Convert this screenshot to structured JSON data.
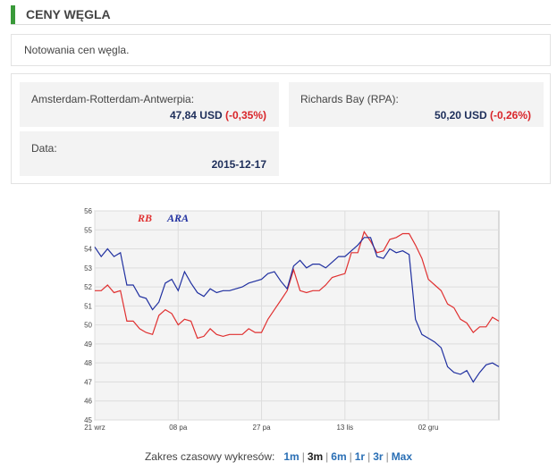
{
  "header": {
    "title": "CENY WĘGLA"
  },
  "description": "Notowania cen węgla.",
  "quotes": {
    "ara": {
      "label": "Amsterdam-Rotterdam-Antwerpia:",
      "value": "47,84 USD",
      "change": "(-0,35%)"
    },
    "rb": {
      "label": "Richards Bay (RPA):",
      "value": "50,20 USD",
      "change": "(-0,26%)"
    },
    "date": {
      "label": "Data:",
      "value": "2015-12-17"
    }
  },
  "range": {
    "label": "Zakres czasowy wykresów:",
    "options": [
      "1m",
      "3m",
      "6m",
      "1r",
      "3r",
      "Max"
    ],
    "selected": "3m"
  },
  "colors": {
    "rb": "#e03030",
    "ara": "#2030a0",
    "accent": "#3a9a3a",
    "link": "#2a6fb5"
  },
  "chart_data": {
    "type": "line",
    "x_tick_labels": [
      "21 wrz",
      "08 pa",
      "27 pa",
      "13 lis",
      "02 gru"
    ],
    "x_tick_index": [
      0,
      13,
      26,
      39,
      52
    ],
    "ylim": [
      45,
      56
    ],
    "yticks": [
      45,
      46,
      47,
      48,
      49,
      50,
      51,
      52,
      53,
      54,
      55,
      56
    ],
    "grid": true,
    "legend": "top-left",
    "series": [
      {
        "name": "RB",
        "values": [
          51.8,
          51.8,
          52.1,
          51.7,
          51.8,
          50.2,
          50.2,
          49.8,
          49.6,
          49.5,
          50.5,
          50.8,
          50.6,
          50.0,
          50.3,
          50.2,
          49.3,
          49.4,
          49.8,
          49.5,
          49.4,
          49.5,
          49.5,
          49.5,
          49.8,
          49.6,
          49.6,
          50.3,
          50.8,
          51.3,
          51.8,
          52.9,
          51.8,
          51.7,
          51.8,
          51.8,
          52.1,
          52.5,
          52.6,
          52.7,
          53.8,
          53.8,
          54.9,
          54.4,
          53.8,
          53.9,
          54.5,
          54.6,
          54.8,
          54.8,
          54.2,
          53.5,
          52.4,
          52.1,
          51.8,
          51.1,
          50.9,
          50.3,
          50.1,
          49.6,
          49.9,
          49.9,
          50.4,
          50.2
        ]
      },
      {
        "name": "ARA",
        "values": [
          54.1,
          53.6,
          54.0,
          53.6,
          53.8,
          52.1,
          52.1,
          51.5,
          51.4,
          50.8,
          51.2,
          52.2,
          52.4,
          51.8,
          52.8,
          52.2,
          51.7,
          51.5,
          51.9,
          51.7,
          51.8,
          51.8,
          51.9,
          52.0,
          52.2,
          52.3,
          52.4,
          52.7,
          52.8,
          52.3,
          51.9,
          53.1,
          53.4,
          53.0,
          53.2,
          53.2,
          53.0,
          53.3,
          53.6,
          53.6,
          53.9,
          54.2,
          54.6,
          54.6,
          53.6,
          53.5,
          54.0,
          53.8,
          53.9,
          53.7,
          50.3,
          49.5,
          49.3,
          49.1,
          48.8,
          47.8,
          47.5,
          47.4,
          47.6,
          47.0,
          47.5,
          47.9,
          48.0,
          47.8
        ]
      }
    ]
  }
}
